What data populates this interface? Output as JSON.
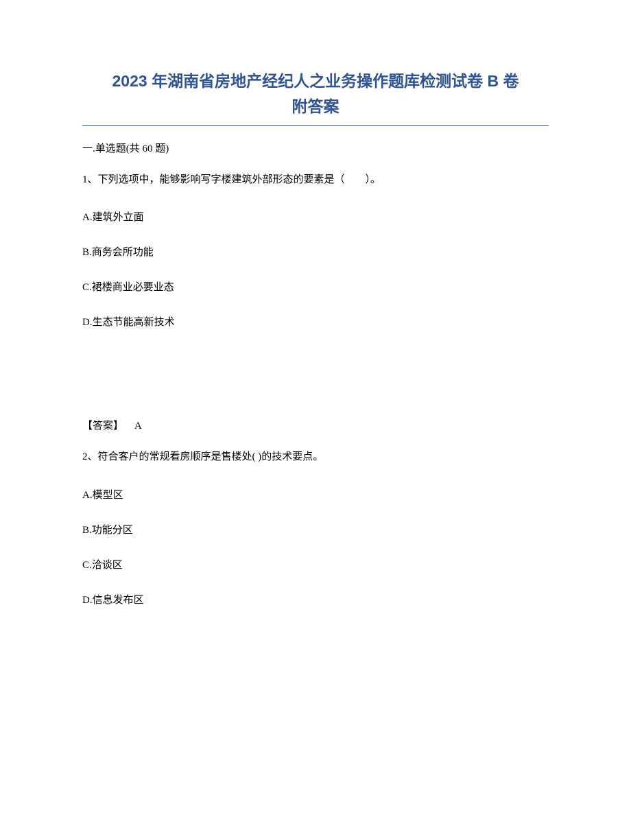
{
  "document": {
    "title_line1": "2023 年湖南省房地产经纪人之业务操作题库检测试卷 B 卷",
    "title_line2": "附答案",
    "title_color": "#2e5496",
    "underline_color": "#2e5496",
    "background_color": "#ffffff",
    "text_color": "#000000",
    "title_fontsize": 23,
    "body_fontsize": 15
  },
  "section": {
    "header": "一.单选题(共 60 题)"
  },
  "questions": [
    {
      "number": "1",
      "text": "1、下列选项中，能够影响写字楼建筑外部形态的要素是（　　）。",
      "options": {
        "A": "A.建筑外立面",
        "B": "B.商务会所功能",
        "C": "C.裙楼商业必要业态",
        "D": "D.生态节能高新技术"
      },
      "answer_label": "【答案】",
      "answer_value": "A"
    },
    {
      "number": "2",
      "text": "2、符合客户的常规看房顺序是售楼处( )的技术要点。",
      "options": {
        "A": "A.模型区",
        "B": "B.功能分区",
        "C": "C.洽谈区",
        "D": "D.信息发布区"
      }
    }
  ]
}
